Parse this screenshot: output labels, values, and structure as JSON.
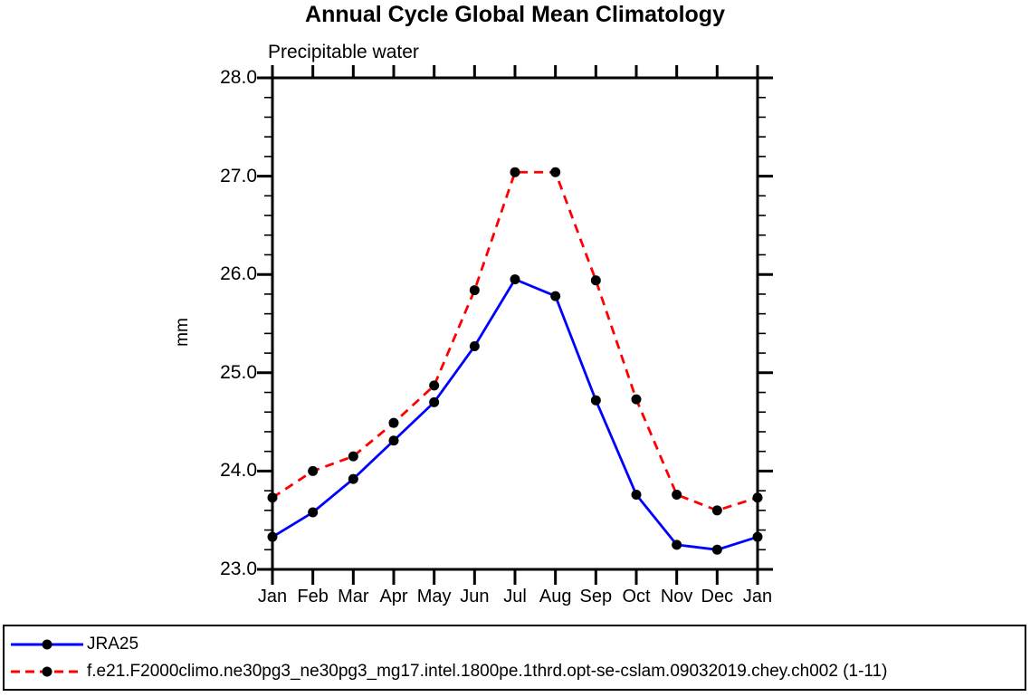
{
  "chart_data": {
    "type": "line",
    "title": "Annual Cycle Global Mean Climatology",
    "subtitle": "Precipitable water",
    "ylabel": "mm",
    "categories": [
      "Jan",
      "Feb",
      "Mar",
      "Apr",
      "May",
      "Jun",
      "Jul",
      "Aug",
      "Sep",
      "Oct",
      "Nov",
      "Dec",
      "Jan"
    ],
    "ylim": [
      23.0,
      28.0
    ],
    "ytick_major_step": 1.0,
    "ytick_minor_step": 0.2,
    "ytick_labels": [
      "23.0",
      "24.0",
      "25.0",
      "26.0",
      "27.0",
      "28.0"
    ],
    "grid": false,
    "legend_position": "bottom-box",
    "marker": {
      "shape": "circle",
      "color": "#000000",
      "radius": 5.5
    },
    "axis_color": "#000000",
    "series": [
      {
        "name": "JRA25",
        "color": "#0000ff",
        "style": "solid",
        "values": [
          23.33,
          23.58,
          23.92,
          24.31,
          24.7,
          25.27,
          25.95,
          25.78,
          24.72,
          23.76,
          23.25,
          23.2,
          23.33
        ]
      },
      {
        "name": "f.e21.F2000climo.ne30pg3_ne30pg3_mg17.intel.1800pe.1thrd.opt-se-cslam.09032019.chey.ch002 (1-11)",
        "color": "#ff0000",
        "style": "dashed",
        "values": [
          23.73,
          24.0,
          24.15,
          24.49,
          24.87,
          25.84,
          27.04,
          27.04,
          25.94,
          24.73,
          23.76,
          23.6,
          23.73
        ]
      }
    ]
  }
}
